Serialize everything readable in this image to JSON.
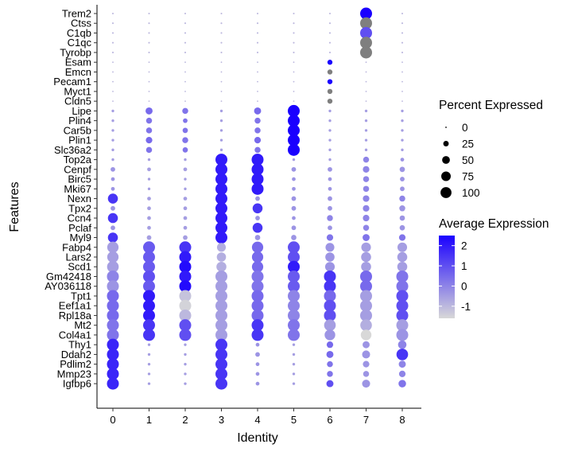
{
  "chart_data": {
    "type": "dotplot",
    "xlabel": "Identity",
    "ylabel": "Features",
    "categories": [
      "0",
      "1",
      "2",
      "3",
      "4",
      "5",
      "6",
      "7",
      "8"
    ],
    "features": [
      "Trem2",
      "Ctss",
      "C1qb",
      "C1qc",
      "Tyrobp",
      "Esam",
      "Emcn",
      "Pecam1",
      "Myct1",
      "Cldn5",
      "Lipe",
      "Plin4",
      "Car5b",
      "Plin1",
      "Slc36a2",
      "Top2a",
      "Cenpf",
      "Birc5",
      "Mki67",
      "Nexn",
      "Tpx2",
      "Ccn4",
      "Pclaf",
      "Myl9",
      "Fabp4",
      "Lars2",
      "Scd1",
      "Gm42418",
      "AY036118",
      "Tpt1",
      "Eef1a1",
      "Rpl18a",
      "Mt2",
      "Col4a1",
      "Thy1",
      "Ddah2",
      "Pdlim2",
      "Mmp23",
      "Igfbp6"
    ],
    "percent_expressed": [
      [
        2,
        2,
        2,
        2,
        2,
        2,
        2,
        100,
        2
      ],
      [
        2,
        2,
        2,
        2,
        2,
        2,
        2,
        100,
        2
      ],
      [
        2,
        2,
        2,
        2,
        2,
        2,
        2,
        100,
        2
      ],
      [
        2,
        2,
        2,
        2,
        2,
        2,
        2,
        100,
        2
      ],
      [
        2,
        2,
        2,
        2,
        2,
        2,
        2,
        100,
        2
      ],
      [
        1,
        1,
        1,
        1,
        1,
        1,
        18,
        1,
        1
      ],
      [
        1,
        1,
        1,
        1,
        1,
        1,
        18,
        1,
        1
      ],
      [
        1,
        1,
        1,
        1,
        1,
        1,
        18,
        1,
        1
      ],
      [
        1,
        1,
        1,
        1,
        1,
        1,
        18,
        1,
        1
      ],
      [
        1,
        1,
        1,
        1,
        1,
        1,
        18,
        1,
        1
      ],
      [
        5,
        35,
        25,
        5,
        35,
        100,
        5,
        5,
        5
      ],
      [
        5,
        25,
        15,
        5,
        25,
        100,
        5,
        5,
        5
      ],
      [
        5,
        25,
        20,
        5,
        25,
        100,
        5,
        5,
        5
      ],
      [
        5,
        30,
        25,
        5,
        30,
        100,
        5,
        5,
        5
      ],
      [
        5,
        25,
        20,
        5,
        25,
        100,
        5,
        5,
        5
      ],
      [
        5,
        5,
        5,
        100,
        100,
        5,
        5,
        25,
        10
      ],
      [
        15,
        10,
        10,
        100,
        100,
        15,
        15,
        30,
        20
      ],
      [
        10,
        5,
        5,
        100,
        100,
        10,
        10,
        25,
        15
      ],
      [
        10,
        5,
        5,
        100,
        100,
        10,
        10,
        25,
        15
      ],
      [
        70,
        10,
        10,
        100,
        15,
        15,
        15,
        30,
        25
      ],
      [
        15,
        10,
        10,
        100,
        70,
        15,
        15,
        30,
        25
      ],
      [
        70,
        10,
        10,
        100,
        15,
        10,
        25,
        30,
        20
      ],
      [
        15,
        10,
        10,
        100,
        70,
        15,
        15,
        25,
        20
      ],
      [
        70,
        15,
        15,
        100,
        20,
        20,
        30,
        35,
        30
      ],
      [
        90,
        100,
        100,
        55,
        90,
        100,
        55,
        65,
        65
      ],
      [
        90,
        100,
        100,
        60,
        90,
        100,
        60,
        70,
        70
      ],
      [
        95,
        100,
        100,
        70,
        90,
        100,
        65,
        70,
        70
      ],
      [
        100,
        100,
        100,
        100,
        100,
        100,
        100,
        100,
        100
      ],
      [
        100,
        100,
        100,
        100,
        100,
        100,
        100,
        100,
        100
      ],
      [
        100,
        100,
        100,
        100,
        100,
        100,
        100,
        100,
        100
      ],
      [
        100,
        100,
        100,
        100,
        100,
        100,
        100,
        100,
        100
      ],
      [
        100,
        100,
        100,
        100,
        100,
        100,
        100,
        100,
        100
      ],
      [
        100,
        100,
        100,
        100,
        100,
        100,
        95,
        95,
        100
      ],
      [
        100,
        100,
        100,
        100,
        100,
        100,
        80,
        80,
        100
      ],
      [
        100,
        5,
        5,
        100,
        10,
        5,
        30,
        35,
        50
      ],
      [
        100,
        5,
        5,
        100,
        15,
        5,
        35,
        45,
        95
      ],
      [
        100,
        5,
        5,
        100,
        10,
        5,
        25,
        30,
        35
      ],
      [
        100,
        5,
        5,
        100,
        10,
        5,
        25,
        25,
        30
      ],
      [
        100,
        5,
        5,
        100,
        10,
        5,
        35,
        45,
        40
      ]
    ],
    "average_expression": [
      [
        -1,
        -1,
        -1,
        -1,
        -1,
        -1,
        -1,
        2.5,
        -1
      ],
      [
        -1,
        -1,
        -1,
        -1,
        -1,
        -1,
        -1,
        -1.6,
        -1
      ],
      [
        -1,
        -1,
        -1,
        -1,
        -1,
        -1,
        -1,
        1.0,
        -1
      ],
      [
        -1,
        -1,
        -1,
        -1,
        -1,
        -1,
        -1,
        -1.6,
        -1
      ],
      [
        -1,
        -1,
        -1,
        -1,
        -1,
        -1,
        -1,
        -1.6,
        -1
      ],
      [
        -1,
        -1,
        -1,
        -1,
        -1,
        -1,
        2.5,
        -1,
        -1
      ],
      [
        -1,
        -1,
        -1,
        -1,
        -1,
        -1,
        -1.6,
        -1,
        -1
      ],
      [
        -1,
        -1,
        -1,
        -1,
        -1,
        -1,
        2.5,
        -1,
        -1
      ],
      [
        -1,
        -1,
        -1,
        -1,
        -1,
        -1,
        -1.6,
        -1,
        -1
      ],
      [
        -1,
        -1,
        -1,
        -1,
        -1,
        -1,
        -1.6,
        -1,
        -1
      ],
      [
        -0.5,
        0.5,
        0.3,
        -0.5,
        0.5,
        2.5,
        -0.5,
        -0.5,
        -0.5
      ],
      [
        -0.5,
        0.3,
        0.3,
        -0.5,
        0.3,
        2.5,
        -0.5,
        -0.5,
        -0.5
      ],
      [
        -0.5,
        0.3,
        0.3,
        -0.5,
        0.3,
        2.5,
        -0.5,
        -0.5,
        -0.5
      ],
      [
        -0.5,
        0.5,
        0.3,
        -0.5,
        0.5,
        2.5,
        -0.5,
        -0.5,
        -0.5
      ],
      [
        -0.5,
        0.3,
        0.3,
        -0.5,
        0.3,
        2.5,
        -0.5,
        -0.5,
        -0.5
      ],
      [
        -0.5,
        -0.5,
        -0.5,
        2.0,
        2.0,
        -0.5,
        -0.5,
        0.0,
        -0.3
      ],
      [
        -0.3,
        -0.5,
        -0.5,
        2.0,
        2.0,
        -0.3,
        -0.3,
        0.0,
        -0.3
      ],
      [
        -0.3,
        -0.5,
        -0.5,
        2.0,
        2.0,
        -0.3,
        -0.3,
        0.0,
        -0.3
      ],
      [
        -0.3,
        -0.5,
        -0.5,
        2.0,
        2.0,
        -0.3,
        -0.3,
        0.0,
        -0.3
      ],
      [
        1.5,
        -0.5,
        -0.5,
        2.0,
        -0.3,
        -0.3,
        -0.3,
        0.0,
        0.0
      ],
      [
        -0.3,
        -0.5,
        -0.5,
        2.0,
        1.5,
        -0.3,
        -0.3,
        0.0,
        -0.3
      ],
      [
        1.5,
        -0.5,
        -0.5,
        2.0,
        -0.3,
        -0.3,
        0.0,
        0.0,
        -0.3
      ],
      [
        -0.3,
        -0.5,
        -0.5,
        2.0,
        1.5,
        -0.3,
        -0.3,
        0.0,
        -0.3
      ],
      [
        1.5,
        -0.5,
        -0.5,
        2.0,
        -0.3,
        -0.3,
        0.3,
        0.3,
        0.3
      ],
      [
        -0.5,
        0.8,
        1.5,
        -0.8,
        0.5,
        1.0,
        -0.3,
        -0.5,
        -0.5
      ],
      [
        -0.5,
        0.8,
        2.0,
        -0.8,
        0.5,
        1.0,
        -0.3,
        -0.5,
        -0.5
      ],
      [
        -0.5,
        0.8,
        2.3,
        -0.8,
        0.5,
        2.0,
        -0.3,
        -0.5,
        -0.5
      ],
      [
        0.0,
        1.0,
        2.0,
        -0.5,
        0.3,
        0.8,
        1.5,
        0.5,
        0.3
      ],
      [
        -0.3,
        0.8,
        2.3,
        -0.5,
        0.3,
        0.8,
        1.5,
        0.5,
        0.3
      ],
      [
        0.5,
        2.0,
        -1.2,
        -0.5,
        0.5,
        0.0,
        0.5,
        -0.5,
        1.0
      ],
      [
        0.5,
        2.0,
        -1.5,
        -0.5,
        0.5,
        0.0,
        1.0,
        -0.5,
        1.0
      ],
      [
        0.5,
        2.0,
        -1.0,
        -0.5,
        0.5,
        0.0,
        1.0,
        -0.5,
        1.0
      ],
      [
        0.3,
        1.5,
        1.0,
        -0.5,
        1.5,
        0.3,
        -0.5,
        -0.8,
        -0.5
      ],
      [
        0.3,
        1.5,
        1.0,
        -0.5,
        1.5,
        0.3,
        -0.3,
        -1.6,
        -0.3
      ],
      [
        1.8,
        -0.5,
        -0.5,
        1.5,
        -0.3,
        -0.5,
        0.5,
        -0.3,
        0.0
      ],
      [
        1.8,
        -0.5,
        -0.5,
        1.5,
        -0.3,
        -0.5,
        0.5,
        -0.3,
        1.5
      ],
      [
        1.8,
        -0.5,
        -0.5,
        1.5,
        -0.3,
        -0.5,
        0.3,
        -0.3,
        0.0
      ],
      [
        1.8,
        -0.5,
        -0.5,
        1.5,
        -0.3,
        -0.5,
        0.3,
        -0.3,
        0.0
      ],
      [
        1.8,
        -0.5,
        -0.5,
        1.5,
        -0.3,
        -0.5,
        1.0,
        -0.3,
        0.3
      ]
    ],
    "color_scale": {
      "low": "#d8d8d8",
      "high": "#1a00ff",
      "min": -1.6,
      "max": 2.5
    },
    "missing_color": "#7f7f7f",
    "legend_size": {
      "title": "Percent Expressed",
      "labels": [
        "0",
        "25",
        "50",
        "75",
        "100"
      ],
      "values": [
        0,
        25,
        50,
        75,
        100
      ]
    },
    "legend_color": {
      "title": "Average Expression",
      "labels": [
        "2",
        "1",
        "0",
        "-1"
      ],
      "values": [
        2,
        1,
        0,
        -1
      ]
    },
    "grid": false,
    "legend_position": "right"
  }
}
